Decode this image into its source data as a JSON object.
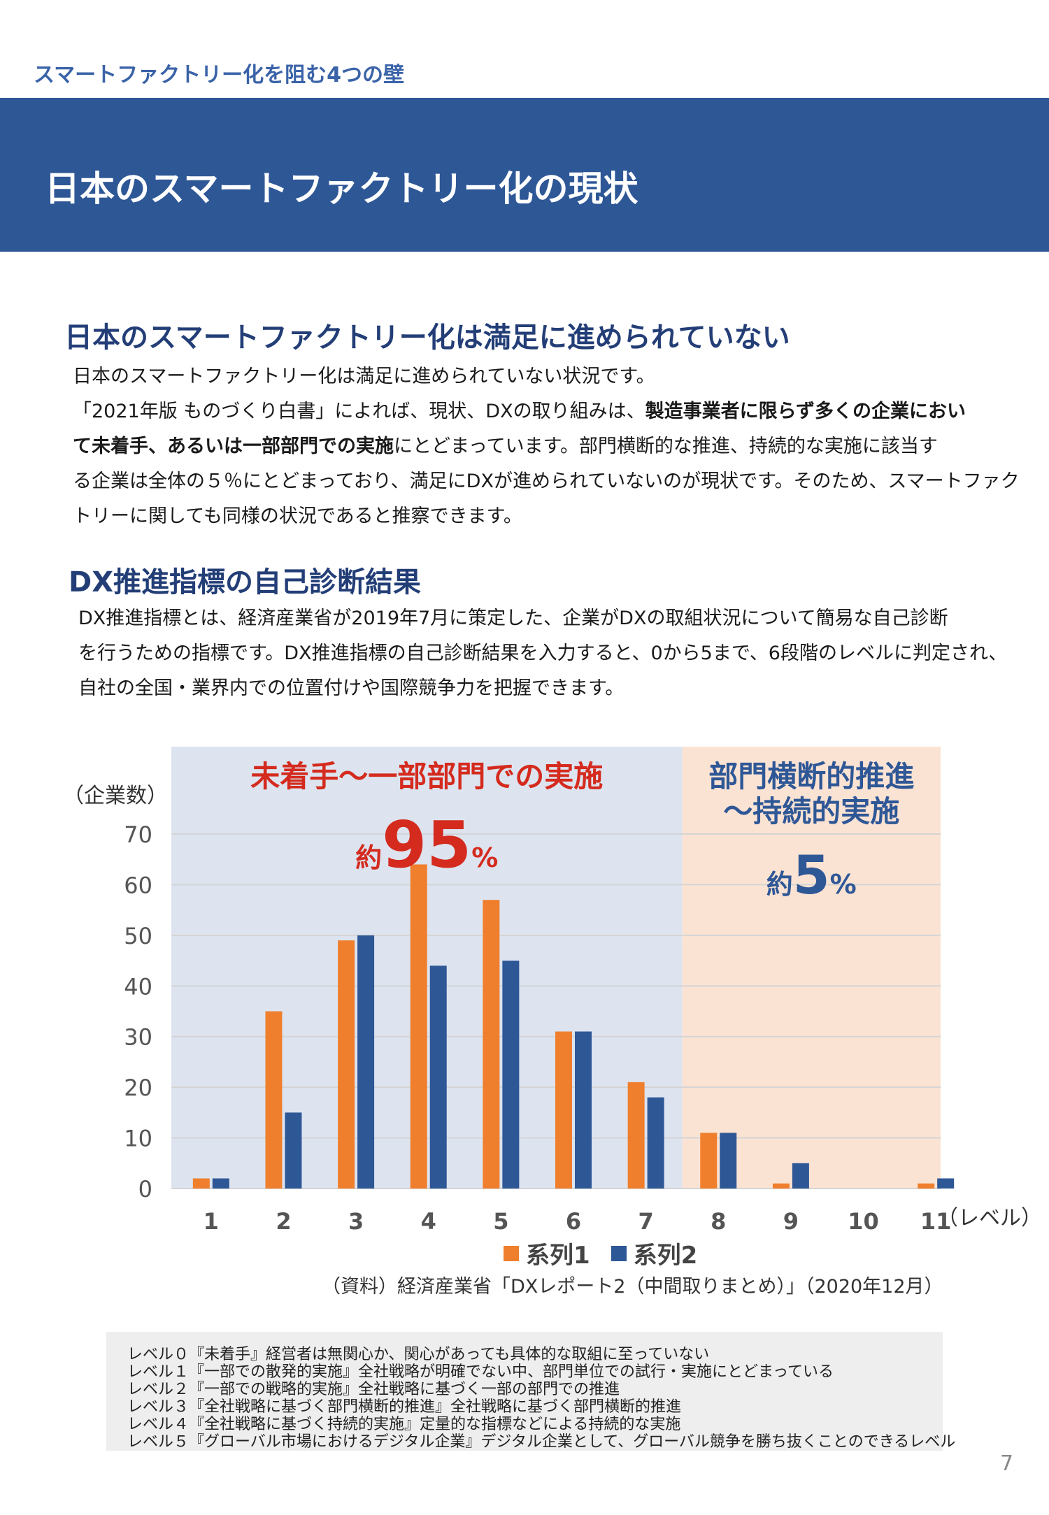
{
  "header": {
    "section_label": "スマートファクトリー化を阻む4つの壁",
    "page_title": "日本のスマートファクトリー化の現状"
  },
  "section1": {
    "heading": "日本のスマートファクトリー化は満足に進められていない",
    "lines": [
      [
        {
          "t": "日本のスマートファクトリー化は満足に進められていない状況です。",
          "b": false
        }
      ],
      [
        {
          "t": "「2021年版 ものづくり白書」によれば、現状、DXの取り組みは、",
          "b": false
        },
        {
          "t": "製造事業者に限らず多くの企業におい",
          "b": true
        }
      ],
      [
        {
          "t": "て未着手、あるいは一部部門での実施",
          "b": true
        },
        {
          "t": "にとどまっています。部門横断的な推進、持続的な実施に該当す",
          "b": false
        }
      ],
      [
        {
          "t": "る企業は全体の５％にとどまっており、満足にDXが進められていないのが現状です。そのため、スマートファク",
          "b": false
        }
      ],
      [
        {
          "t": "トリーに関しても同様の状況であると推察できます。",
          "b": false
        }
      ]
    ]
  },
  "section2": {
    "heading": "DX推進指標の自己診断結果",
    "lines": [
      [
        {
          "t": "DX推進指標とは、経済産業省が2019年7月に策定した、企業がDXの取組状況について簡易な自己診断",
          "b": false
        }
      ],
      [
        {
          "t": "を行うための指標です。DX推進指標の自己診断結果を入力すると、0から5まで、6段階のレベルに判定され、",
          "b": false
        }
      ],
      [
        {
          "t": "自社の全国・業界内での位置付けや国際競争力を把握できます。",
          "b": false
        }
      ]
    ]
  },
  "chart_data": {
    "type": "bar",
    "categories": [
      "1",
      "2",
      "3",
      "4",
      "5",
      "6",
      "7",
      "8",
      "9",
      "10",
      "11"
    ],
    "series": [
      {
        "name": "系列1",
        "color": "#f07f2d",
        "values": [
          2,
          35,
          49,
          64,
          57,
          31,
          21,
          11,
          1,
          0,
          1
        ]
      },
      {
        "name": "系列2",
        "color": "#2e5796",
        "values": [
          2,
          15,
          50,
          44,
          45,
          31,
          18,
          11,
          5,
          0,
          2
        ]
      }
    ],
    "ylabel": "（企業数）",
    "xlabel": "（レベル）",
    "ylim": [
      0,
      70
    ],
    "yticks": [
      0,
      10,
      20,
      30,
      40,
      50,
      60,
      70
    ],
    "grid": true,
    "legend": "bottom",
    "regions": [
      {
        "label_lines": [
          "未着手～一部部門での実施"
        ],
        "prefix": "約",
        "big": "95",
        "suffix": "%",
        "fill": "#dde4f0",
        "label_color": "#d42b1e",
        "big_color": "#d42b1e",
        "categories": [
          "1",
          "2",
          "3",
          "4",
          "5",
          "6",
          "7"
        ]
      },
      {
        "label_lines": [
          "部門横断的推進",
          "～持続的実施"
        ],
        "prefix": "約",
        "big": "5",
        "suffix": "%",
        "fill": "#fbe3d4",
        "label_color": "#2e5796",
        "big_color": "#2e5796",
        "categories": [
          "8",
          "9",
          "10",
          "11"
        ]
      }
    ]
  },
  "legend_items": [
    {
      "label": "系列1",
      "color": "#f07f2d"
    },
    {
      "label": "系列2",
      "color": "#2e5796"
    }
  ],
  "source": "（資料）経済産業省「DXレポート2（中間取りまとめ）」（2020年12月）",
  "levels": [
    "レベル０『未着手』経営者は無関心か、関心があっても具体的な取組に至っていない",
    "レベル１『一部での散発的実施』全社戦略が明確でない中、部門単位での試行・実施にとどまっている",
    "レベル２『一部での戦略的実施』全社戦略に基づく一部の部門での推進",
    "レベル３『全社戦略に基づく部門横断的推進』全社戦略に基づく部門横断的推進",
    "レベル４『全社戦略に基づく持続的実施』定量的な指標などによる持続的な実施",
    "レベル５『グローバル市場におけるデジタル企業』デジタル企業として、グローバル競争を勝ち抜くことのできるレベル"
  ],
  "page_number": "7"
}
